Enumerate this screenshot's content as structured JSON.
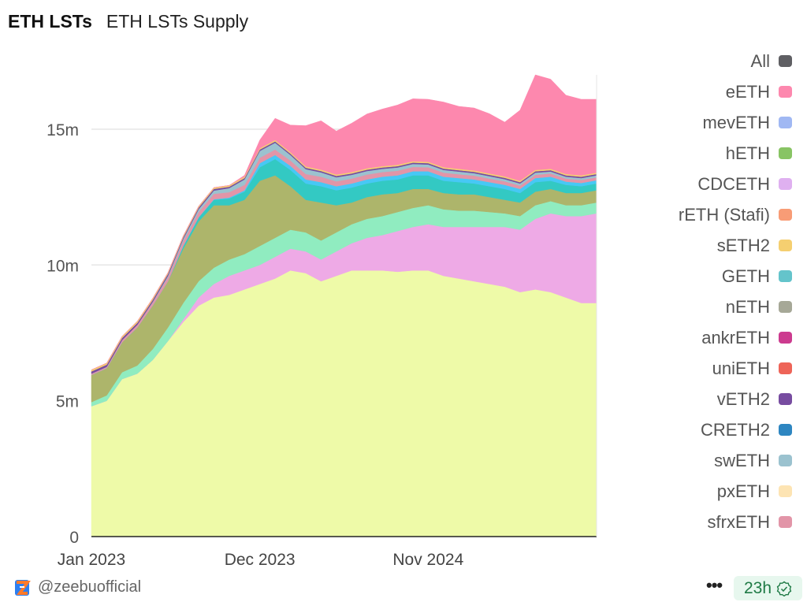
{
  "header": {
    "title": "ETH LSTs",
    "subtitle": "ETH LSTs Supply"
  },
  "footer": {
    "handle": "@zeebuofficial",
    "more_label": "•••",
    "freshness": "23h",
    "freshness_icon": "verified-check-icon"
  },
  "legend": [
    {
      "label": "All",
      "color": "#5f5f63"
    },
    {
      "label": "eETH",
      "color": "#fd88ae"
    },
    {
      "label": "mevETH",
      "color": "#a0b8f3"
    },
    {
      "label": "hETH",
      "color": "#88c464"
    },
    {
      "label": "CDCETH",
      "color": "#dfb0f0"
    },
    {
      "label": "rETH (Stafi)",
      "color": "#f89c76"
    },
    {
      "label": "sETH2",
      "color": "#f5cf70"
    },
    {
      "label": "GETH",
      "color": "#64c4cb"
    },
    {
      "label": "nETH",
      "color": "#a6a897"
    },
    {
      "label": "ankrETH",
      "color": "#cc3b8f"
    },
    {
      "label": "uniETH",
      "color": "#ee6458"
    },
    {
      "label": "vETH2",
      "color": "#774ca0"
    },
    {
      "label": "CRETH2",
      "color": "#2e86c1"
    },
    {
      "label": "swETH",
      "color": "#9bc2cf"
    },
    {
      "label": "pxETH",
      "color": "#fde4b3"
    },
    {
      "label": "sfrxETH",
      "color": "#e295a8"
    }
  ],
  "chart_data": {
    "type": "area",
    "stacked": true,
    "title": "ETH LSTs Supply",
    "xlabel": "",
    "ylabel": "",
    "ylim": [
      0,
      17000000
    ],
    "y_ticks": [
      {
        "value": 0,
        "label": "0"
      },
      {
        "value": 5000000,
        "label": "5m"
      },
      {
        "value": 10000000,
        "label": "10m"
      },
      {
        "value": 15000000,
        "label": "15m"
      }
    ],
    "x_ticks": [
      {
        "value": "2023-01",
        "label": "Jan 2023"
      },
      {
        "value": "2023-12",
        "label": "Dec 2023"
      },
      {
        "value": "2024-11",
        "label": "Nov 2024"
      }
    ],
    "grid": true,
    "legend_position": "right",
    "x": [
      "2023-01",
      "2023-02",
      "2023-03",
      "2023-04",
      "2023-05",
      "2023-06",
      "2023-07",
      "2023-08",
      "2023-09",
      "2023-10",
      "2023-11",
      "2023-12",
      "2024-01",
      "2024-02",
      "2024-03",
      "2024-04",
      "2024-05",
      "2024-06",
      "2024-07",
      "2024-08",
      "2024-09",
      "2024-10",
      "2024-11",
      "2024-12",
      "2025-01",
      "2025-02",
      "2025-03",
      "2025-04",
      "2025-05",
      "2025-06",
      "2025-07",
      "2025-08",
      "2025-09",
      "2025-10"
    ],
    "unit": "millions",
    "series": [
      {
        "color": "#eefaa8",
        "values": [
          4.8,
          5.0,
          5.8,
          6.0,
          6.5,
          7.2,
          7.9,
          8.5,
          8.8,
          8.9,
          9.1,
          9.3,
          9.5,
          9.8,
          9.7,
          9.4,
          9.6,
          9.8,
          9.8,
          9.8,
          9.75,
          9.8,
          9.8,
          9.6,
          9.5,
          9.4,
          9.3,
          9.2,
          9.0,
          9.1,
          9.0,
          8.8,
          8.6,
          8.6
        ]
      },
      {
        "name": "CDCETH",
        "color": "#eeaae6",
        "values": [
          0,
          0,
          0,
          0,
          0,
          0,
          0.1,
          0.3,
          0.5,
          0.7,
          0.7,
          0.7,
          0.8,
          0.8,
          0.8,
          0.8,
          0.9,
          1.0,
          1.2,
          1.3,
          1.5,
          1.6,
          1.7,
          1.8,
          1.9,
          2.0,
          2.1,
          2.2,
          2.3,
          2.6,
          2.9,
          3.0,
          3.2,
          3.3
        ]
      },
      {
        "color": "#90ecc0",
        "values": [
          0.15,
          0.2,
          0.25,
          0.3,
          0.4,
          0.5,
          0.6,
          0.6,
          0.6,
          0.6,
          0.6,
          0.7,
          0.7,
          0.7,
          0.7,
          0.7,
          0.7,
          0.7,
          0.7,
          0.7,
          0.7,
          0.7,
          0.7,
          0.65,
          0.6,
          0.6,
          0.55,
          0.5,
          0.5,
          0.5,
          0.45,
          0.4,
          0.4,
          0.4
        ]
      },
      {
        "color": "#adb56b",
        "values": [
          1.0,
          1.0,
          1.1,
          1.4,
          1.6,
          1.7,
          2.0,
          2.2,
          2.3,
          2.0,
          2.0,
          2.4,
          2.3,
          1.6,
          1.2,
          1.4,
          1.0,
          0.8,
          0.8,
          0.8,
          0.7,
          0.7,
          0.6,
          0.6,
          0.6,
          0.6,
          0.55,
          0.5,
          0.5,
          0.5,
          0.45,
          0.45,
          0.45,
          0.45
        ]
      },
      {
        "color": "#33c9c3",
        "values": [
          0,
          0,
          0,
          0,
          0,
          0,
          0.1,
          0.15,
          0.2,
          0.25,
          0.3,
          0.5,
          0.6,
          0.6,
          0.6,
          0.6,
          0.55,
          0.55,
          0.5,
          0.5,
          0.5,
          0.5,
          0.5,
          0.45,
          0.45,
          0.4,
          0.4,
          0.4,
          0.35,
          0.35,
          0.3,
          0.3,
          0.25,
          0.25
        ]
      },
      {
        "color": "#47c8f5",
        "values": [
          0,
          0,
          0,
          0,
          0,
          0,
          0,
          0,
          0.02,
          0.03,
          0.05,
          0.15,
          0.15,
          0.15,
          0.15,
          0.15,
          0.15,
          0.15,
          0.15,
          0.15,
          0.15,
          0.15,
          0.15,
          0.15,
          0.15,
          0.15,
          0.15,
          0.15,
          0.15,
          0.15,
          0.15,
          0.12,
          0.12,
          0.12
        ]
      },
      {
        "name": "sfrxETH",
        "color": "#e295a8",
        "values": [
          0.05,
          0.05,
          0.08,
          0.1,
          0.12,
          0.15,
          0.18,
          0.2,
          0.2,
          0.2,
          0.2,
          0.2,
          0.2,
          0.2,
          0.2,
          0.2,
          0.18,
          0.18,
          0.18,
          0.17,
          0.17,
          0.16,
          0.15,
          0.15,
          0.14,
          0.14,
          0.13,
          0.13,
          0.12,
          0.12,
          0.12,
          0.11,
          0.11,
          0.11
        ]
      },
      {
        "name": "swETH",
        "color": "#9bc2cf",
        "values": [
          0,
          0,
          0,
          0,
          0.02,
          0.05,
          0.08,
          0.1,
          0.12,
          0.15,
          0.2,
          0.25,
          0.25,
          0.2,
          0.18,
          0.16,
          0.15,
          0.14,
          0.13,
          0.12,
          0.12,
          0.11,
          0.1,
          0.1,
          0.1,
          0.09,
          0.09,
          0.08,
          0.08,
          0.08,
          0.07,
          0.07,
          0.07,
          0.07
        ]
      },
      {
        "name": "vETH2",
        "color": "#774ca0",
        "values": [
          0.08,
          0.08,
          0.08,
          0.07,
          0.07,
          0.07,
          0.06,
          0.06,
          0.06,
          0.05,
          0.05,
          0.05,
          0.05,
          0.05,
          0.05,
          0.05,
          0.05,
          0.05,
          0.05,
          0.05,
          0.05,
          0.05,
          0.05,
          0.05,
          0.05,
          0.05,
          0.05,
          0.05,
          0.05,
          0.05,
          0.05,
          0.05,
          0.05,
          0.05
        ]
      },
      {
        "name": "sETH2",
        "color": "#f5cf70",
        "values": [
          0.06,
          0.06,
          0.06,
          0.06,
          0.06,
          0.05,
          0.05,
          0.05,
          0.05,
          0.05,
          0.05,
          0.05,
          0.05,
          0.05,
          0.05,
          0.05,
          0.05,
          0.05,
          0.05,
          0.05,
          0.05,
          0.05,
          0.05,
          0.05,
          0.05,
          0.05,
          0.05,
          0.05,
          0.05,
          0.05,
          0.05,
          0.05,
          0.05,
          0.05
        ]
      },
      {
        "name": "eETH",
        "color": "#fd88ae",
        "values": [
          0,
          0,
          0,
          0,
          0,
          0,
          0,
          0,
          0,
          0,
          0.05,
          0.3,
          0.8,
          1.0,
          1.5,
          1.8,
          1.6,
          1.8,
          2.0,
          2.1,
          2.2,
          2.3,
          2.3,
          2.4,
          2.3,
          2.3,
          2.2,
          2.0,
          2.6,
          3.5,
          3.3,
          2.9,
          2.8,
          2.7
        ]
      }
    ]
  }
}
